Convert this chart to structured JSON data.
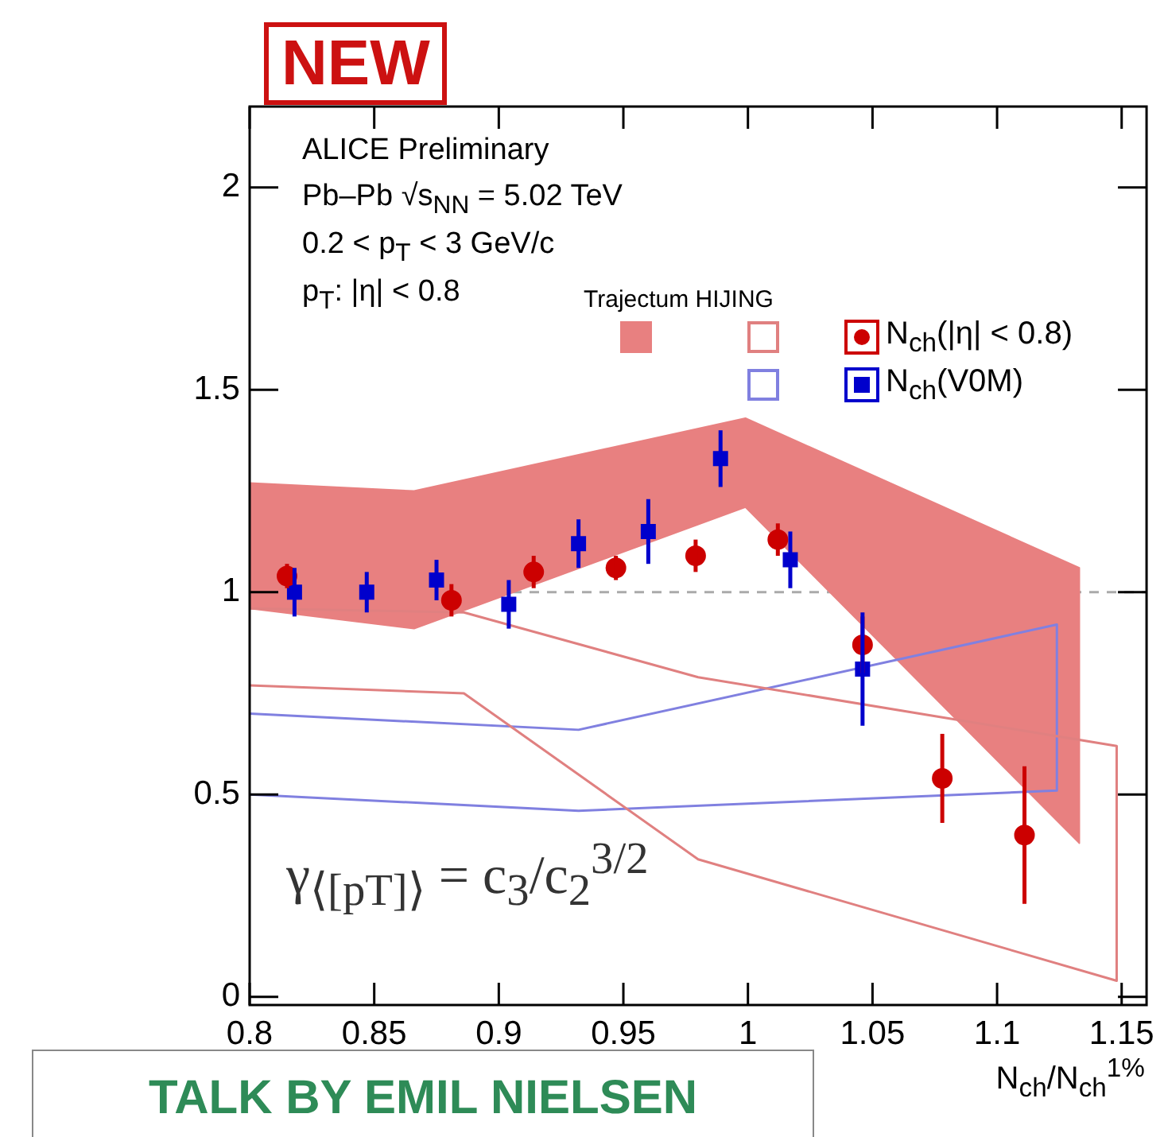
{
  "chart_data": {
    "type": "scatter",
    "xlabel": "N$_{ch}$/N$_{ch}$$^{1%}$",
    "xlim": [
      0.8,
      1.16
    ],
    "xticks": [
      0.8,
      0.85,
      0.9,
      0.95,
      1,
      1.05,
      1.1,
      1.15
    ],
    "ylim": [
      -0.02,
      2.2
    ],
    "yticks": [
      0,
      0.5,
      1,
      1.5,
      2
    ],
    "grid": false,
    "legend": "top right",
    "legend_title": "Trajectum HIJING",
    "series": [
      {
        "type": "area",
        "color": "#e88080",
        "x": [
          0.8,
          0.866,
          0.999,
          1.133,
          1.133,
          0.999,
          0.866,
          0.8
        ],
        "values": [
          1.27,
          1.25,
          1.43,
          1.06,
          0.38,
          1.21,
          0.91,
          0.96
        ]
      },
      {
        "type": "line",
        "color": "#e08080",
        "x": [
          0.8,
          0.886,
          0.98,
          1.148,
          1.148,
          0.98,
          0.886,
          0.8
        ],
        "values": [
          0.96,
          0.95,
          0.79,
          0.62,
          0.04,
          0.34,
          0.75,
          0.77
        ]
      },
      {
        "type": "line",
        "color": "#8080e0",
        "x": [
          0.8,
          0.932,
          1.124,
          1.124,
          0.932,
          0.8
        ],
        "values": [
          0.7,
          0.66,
          0.92,
          0.51,
          0.46,
          0.5
        ]
      },
      {
        "name": "N$_{ch}$(|η| < 0.8)",
        "type": "scatter",
        "marker": "circle",
        "color": "#cc0000",
        "x": [
          0.815,
          0.881,
          0.914,
          0.947,
          0.979,
          1.012,
          1.046,
          1.078,
          1.111
        ],
        "values": [
          1.04,
          0.98,
          1.05,
          1.06,
          1.09,
          1.13,
          0.87,
          0.54,
          0.4
        ],
        "errors": [
          0.03,
          0.04,
          0.04,
          0.03,
          0.04,
          0.04,
          0.07,
          0.11,
          0.17
        ]
      },
      {
        "name": "N$_{ch}$(V0M)",
        "type": "scatter",
        "marker": "square",
        "color": "#0000cc",
        "x": [
          0.818,
          0.847,
          0.875,
          0.904,
          0.932,
          0.96,
          0.989,
          1.017,
          1.046
        ],
        "values": [
          1.0,
          1.0,
          1.03,
          0.97,
          1.12,
          1.15,
          1.33,
          1.08,
          0.81
        ],
        "errors": [
          0.06,
          0.05,
          0.05,
          0.06,
          0.06,
          0.08,
          0.07,
          0.07,
          0.14
        ]
      }
    ],
    "ref_lines": [
      {
        "axis": "y",
        "value": 1,
        "color": "#aaaaaa",
        "line_style": "dashed"
      }
    ],
    "annotations": [
      "ALICE Preliminary",
      "Pb–Pb √s$_{NN}$ = 5.02 TeV",
      "0.2 < p$_{T}$ < 3 GeV/c",
      "p$_{T}$: |η| < 0.8",
      "γ$_{⟨[pT]⟩}$ = c$_{3}$/c$_{2}$$^{3/2}$",
      "NEW",
      "TALK BY EMIL NIELSEN"
    ]
  }
}
